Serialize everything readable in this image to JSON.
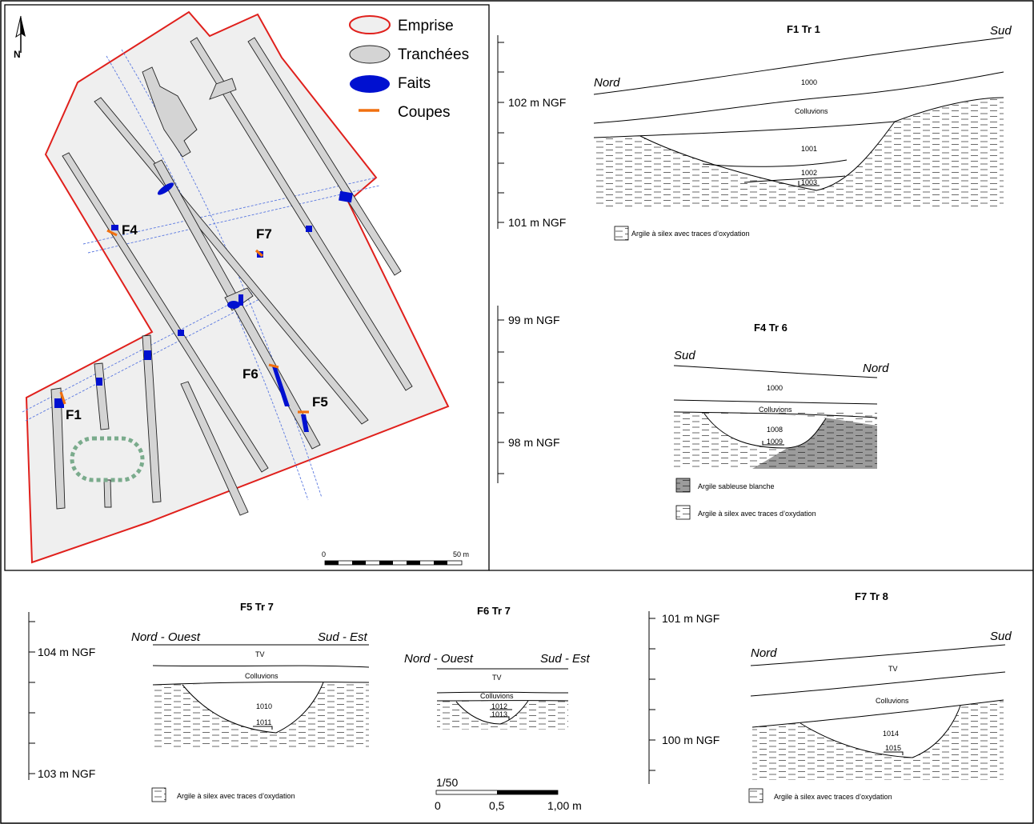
{
  "map": {
    "legend": {
      "emprise": "Emprise",
      "tranchees": "Tranchées",
      "faits": "Faits",
      "coupes": "Coupes"
    },
    "north": "N",
    "features": [
      "F1",
      "F4",
      "F5",
      "F6",
      "F7"
    ],
    "scale": {
      "start": "0",
      "end": "50 m"
    },
    "colors": {
      "emprise": "#e0201c",
      "trench": "#d4d4d4",
      "fait": "#0010d0",
      "coupe": "#f07010",
      "infra": "#5a78e0",
      "dotted": "#7aab8c"
    }
  },
  "sections": {
    "f1": {
      "title": "F1 Tr 1",
      "left": "Nord",
      "right": "Sud",
      "ticks": [
        "102 m NGF",
        "101 m NGF"
      ],
      "layers": [
        "1000",
        "Colluvions",
        "1001",
        "1002",
        "1003"
      ],
      "legend": "Argile à silex avec traces d’oxydation"
    },
    "f4": {
      "title": "F4 Tr 6",
      "left": "Sud",
      "right": "Nord",
      "ticks": [
        "99 m NGF",
        "98 m NGF"
      ],
      "layers": [
        "1000",
        "Colluvions",
        "1008",
        "1009"
      ],
      "legend1": "Argile sableuse blanche",
      "legend2": "Argile à silex avec traces d’oxydation"
    },
    "f5": {
      "title": "F5 Tr 7",
      "left": "Nord - Ouest",
      "right": "Sud - Est",
      "ticks": [
        "104 m NGF",
        "103 m NGF"
      ],
      "layers": [
        "TV",
        "Colluvions",
        "1010",
        "1011"
      ],
      "legend": "Argile à silex avec traces d’oxydation"
    },
    "f6": {
      "title": "F6 Tr 7",
      "left": "Nord - Ouest",
      "right": "Sud - Est",
      "layers": [
        "TV",
        "Colluvions",
        "1012",
        "1013"
      ],
      "scale": {
        "ratio": "1/50",
        "s0": "0",
        "s1": "0,5",
        "s2": "1,00 m"
      }
    },
    "f7": {
      "title": "F7 Tr 8",
      "left": "Nord",
      "right": "Sud",
      "ticks": [
        "101 m NGF",
        "100 m NGF"
      ],
      "layers": [
        "TV",
        "Colluvions",
        "1014",
        "1015"
      ],
      "legend": "Argile à silex avec traces d’oxydation"
    }
  }
}
